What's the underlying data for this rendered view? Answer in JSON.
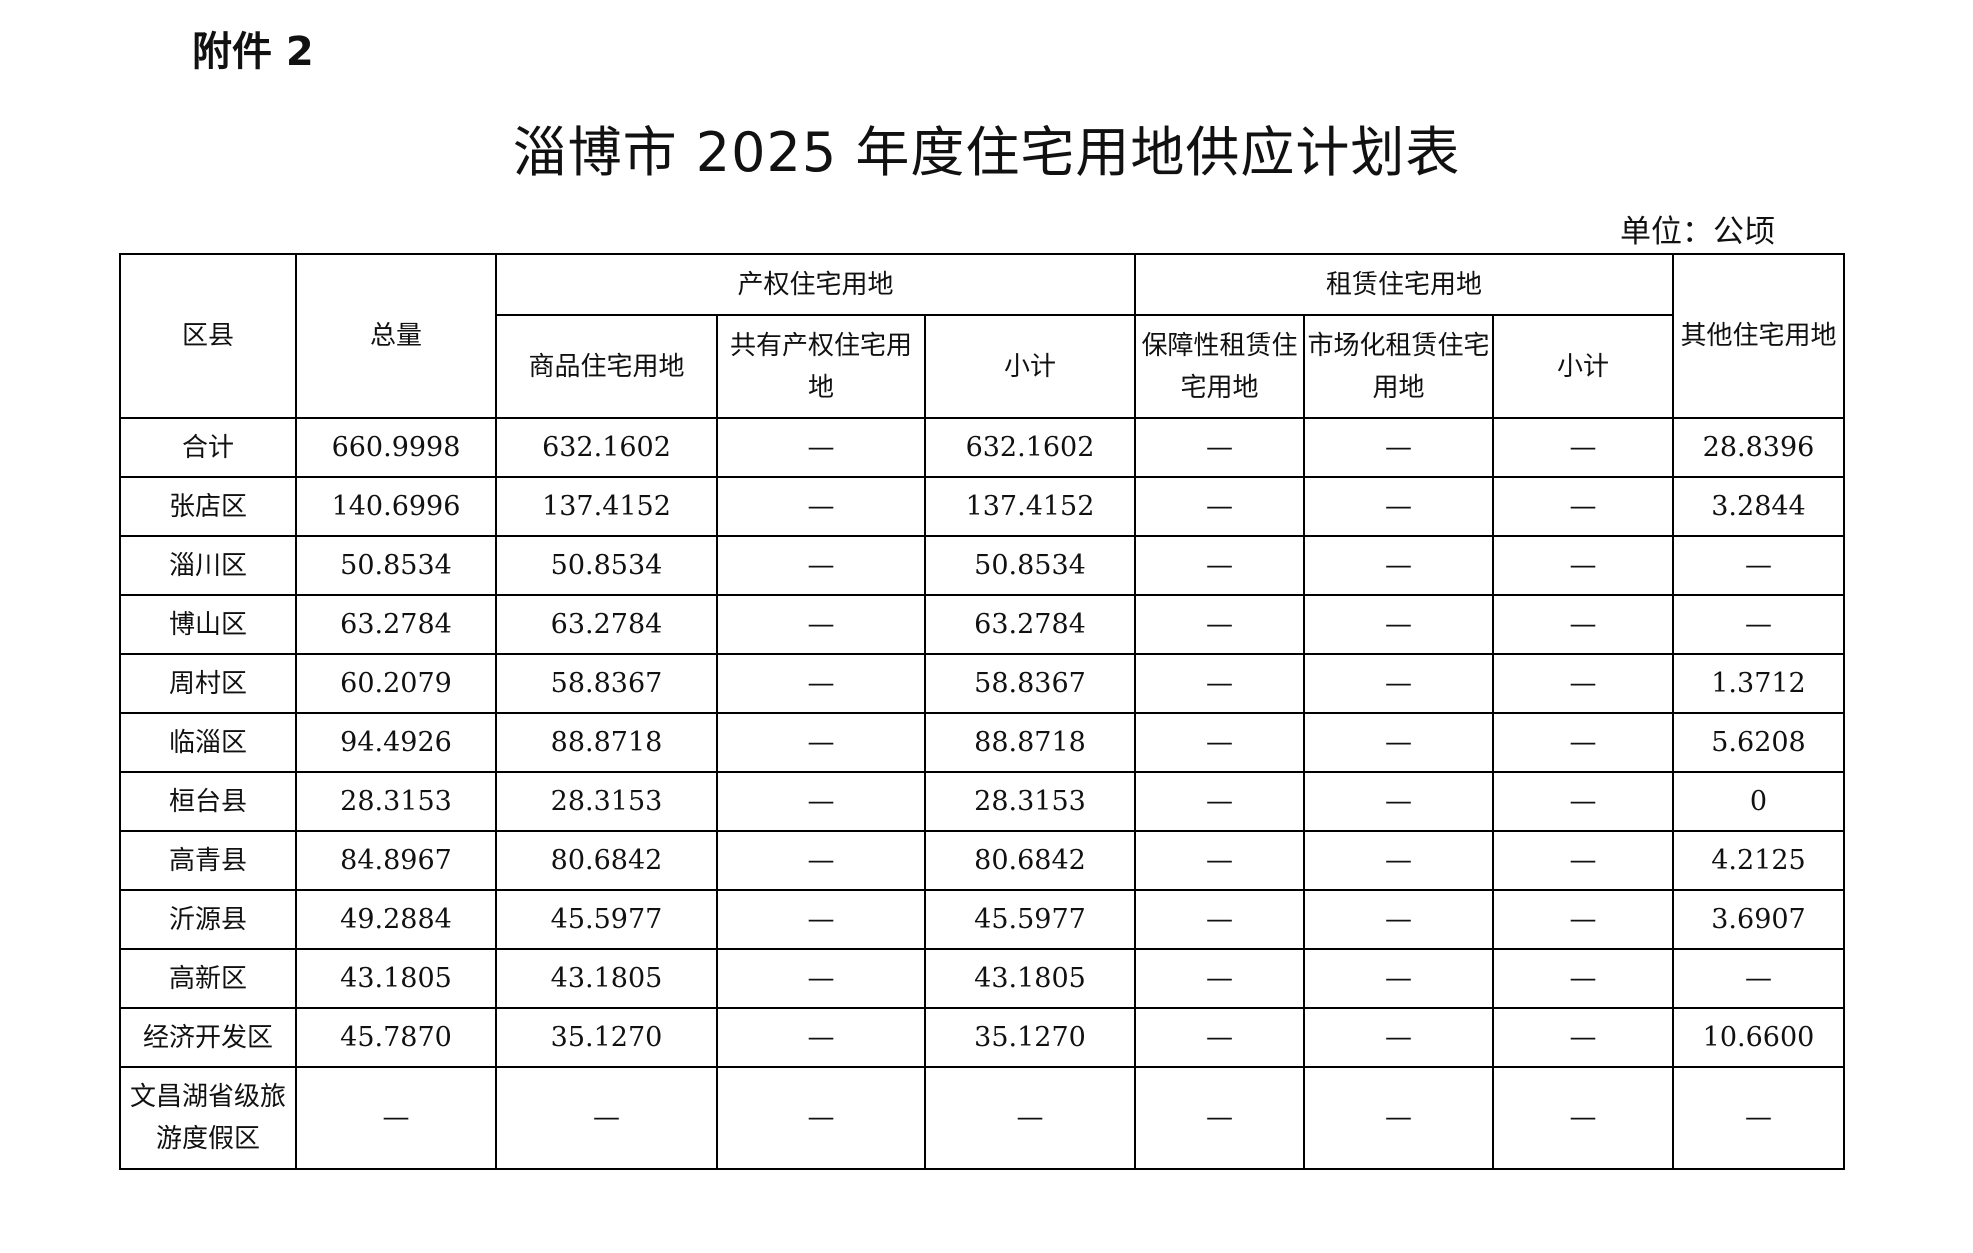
{
  "attachment_label": "附件 2",
  "title": "淄博市 2025 年度住宅用地供应计划表",
  "unit_label": "单位：公顷",
  "table": {
    "headers": {
      "district": "区县",
      "total": "总量",
      "property_group": "产权住宅用地",
      "rental_group": "租赁住宅用地",
      "other": "其他住宅用地",
      "commercial": "商品住宅用地",
      "shared_property": "共有产权住宅用地",
      "property_subtotal": "小计",
      "affordable_rental": "保障性租赁住宅用地",
      "market_rental": "市场化租赁住宅用地",
      "rental_subtotal": "小计"
    },
    "rows": [
      {
        "district": "合计",
        "total": "660.9998",
        "commercial": "632.1602",
        "shared_property": "—",
        "property_subtotal": "632.1602",
        "affordable_rental": "—",
        "market_rental": "—",
        "rental_subtotal": "—",
        "other": "28.8396"
      },
      {
        "district": "张店区",
        "total": "140.6996",
        "commercial": "137.4152",
        "shared_property": "—",
        "property_subtotal": "137.4152",
        "affordable_rental": "—",
        "market_rental": "—",
        "rental_subtotal": "—",
        "other": "3.2844"
      },
      {
        "district": "淄川区",
        "total": "50.8534",
        "commercial": "50.8534",
        "shared_property": "—",
        "property_subtotal": "50.8534",
        "affordable_rental": "—",
        "market_rental": "—",
        "rental_subtotal": "—",
        "other": "—"
      },
      {
        "district": "博山区",
        "total": "63.2784",
        "commercial": "63.2784",
        "shared_property": "—",
        "property_subtotal": "63.2784",
        "affordable_rental": "—",
        "market_rental": "—",
        "rental_subtotal": "—",
        "other": "—"
      },
      {
        "district": "周村区",
        "total": "60.2079",
        "commercial": "58.8367",
        "shared_property": "—",
        "property_subtotal": "58.8367",
        "affordable_rental": "—",
        "market_rental": "—",
        "rental_subtotal": "—",
        "other": "1.3712"
      },
      {
        "district": "临淄区",
        "total": "94.4926",
        "commercial": "88.8718",
        "shared_property": "—",
        "property_subtotal": "88.8718",
        "affordable_rental": "—",
        "market_rental": "—",
        "rental_subtotal": "—",
        "other": "5.6208"
      },
      {
        "district": "桓台县",
        "total": "28.3153",
        "commercial": "28.3153",
        "shared_property": "—",
        "property_subtotal": "28.3153",
        "affordable_rental": "—",
        "market_rental": "—",
        "rental_subtotal": "—",
        "other": "0"
      },
      {
        "district": "高青县",
        "total": "84.8967",
        "commercial": "80.6842",
        "shared_property": "—",
        "property_subtotal": "80.6842",
        "affordable_rental": "—",
        "market_rental": "—",
        "rental_subtotal": "—",
        "other": "4.2125"
      },
      {
        "district": "沂源县",
        "total": "49.2884",
        "commercial": "45.5977",
        "shared_property": "—",
        "property_subtotal": "45.5977",
        "affordable_rental": "—",
        "market_rental": "—",
        "rental_subtotal": "—",
        "other": "3.6907"
      },
      {
        "district": "高新区",
        "total": "43.1805",
        "commercial": "43.1805",
        "shared_property": "—",
        "property_subtotal": "43.1805",
        "affordable_rental": "—",
        "market_rental": "—",
        "rental_subtotal": "—",
        "other": "—"
      },
      {
        "district": "经济开发区",
        "total": "45.7870",
        "commercial": "35.1270",
        "shared_property": "—",
        "property_subtotal": "35.1270",
        "affordable_rental": "—",
        "market_rental": "—",
        "rental_subtotal": "—",
        "other": "10.6600"
      },
      {
        "district": "文昌湖省级旅游度假区",
        "total": "—",
        "commercial": "—",
        "shared_property": "—",
        "property_subtotal": "—",
        "affordable_rental": "—",
        "market_rental": "—",
        "rental_subtotal": "—",
        "other": "—"
      }
    ]
  }
}
